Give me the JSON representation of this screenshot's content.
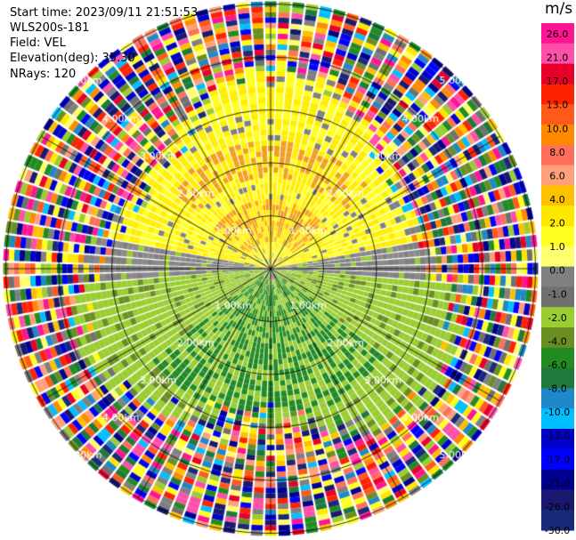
{
  "info": {
    "start_time": "Start time: 2023/09/11 21:51:53",
    "instrument": "WLS200s-181",
    "field": "Field: VEL",
    "elevation": "Elevation(deg): 35.30",
    "nrays": "NRays: 120"
  },
  "colorbar": {
    "unit": "m/s",
    "ticks": [
      "26.0",
      "21.0",
      "17.0",
      "13.0",
      "10.0",
      "8.0",
      "6.0",
      "4.0",
      "2.0",
      "1.0",
      "0.0",
      "-1.0",
      "-2.0",
      "-4.0",
      "-6.0",
      "-8.0",
      "-10.0",
      "-13.0",
      "-17.0",
      "-21.0",
      "-26.0",
      "-30.0"
    ],
    "colors": [
      "#ff1493",
      "#ff4fa8",
      "#e8002a",
      "#ff2200",
      "#ff5a1a",
      "#ff8a00",
      "#ff6f5a",
      "#ffa07a",
      "#ffc000",
      "#ffe800",
      "#ffff20",
      "#ffff70",
      "#808080",
      "#707070",
      "#9acd32",
      "#6b8e23",
      "#228b22",
      "#1e7a3a",
      "#1e88c8",
      "#00bfff",
      "#0000cd",
      "#0000ff",
      "#000090",
      "#191970",
      "#1a2a7a"
    ]
  },
  "chart_data": {
    "type": "heatmap",
    "title": "",
    "projection": "polar PPI",
    "field": "VEL",
    "units": "m/s",
    "nrays": 120,
    "range_rings_km": [
      1.0,
      2.0,
      3.0,
      4.0,
      5.0
    ],
    "ring_labels": [
      "1.00km",
      "2.00km",
      "3.00km",
      "4.00km",
      "5.00km"
    ],
    "color_scale_ticks": [
      26.0,
      21.0,
      17.0,
      13.0,
      10.0,
      8.0,
      6.0,
      4.0,
      2.0,
      1.0,
      0.0,
      -1.0,
      -2.0,
      -4.0,
      -6.0,
      -8.0,
      -10.0,
      -13.0,
      -17.0,
      -21.0,
      -26.0,
      -30.0
    ],
    "pattern": {
      "north_half": "positive velocities about 2 to 4 m/s (yellow), orange patches near 4 to 6 m/s",
      "east_west_band": "near zero (gray)",
      "south_half": "negative velocities about -2 to -6 m/s (green)",
      "outer_ranges": "noisy random values across full scale beyond about 3.5 km"
    },
    "grid": true
  }
}
